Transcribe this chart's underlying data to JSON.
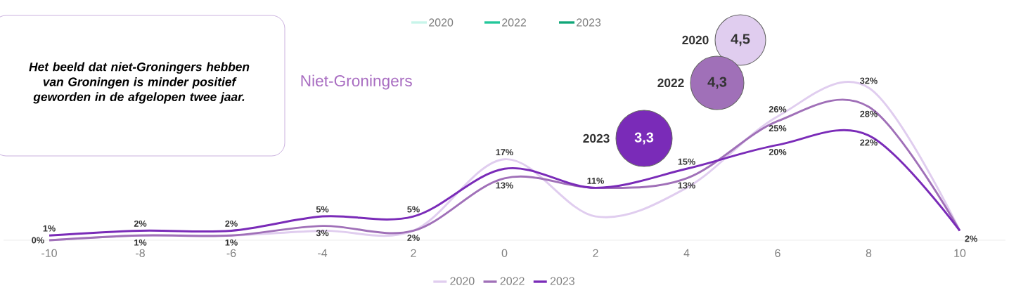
{
  "chart_data": {
    "type": "line",
    "title": "Niet-Groningers",
    "categories": [
      "-10",
      "-8",
      "-6",
      "-4",
      "2",
      "0",
      "2",
      "4",
      "6",
      "8",
      "10"
    ],
    "series": [
      {
        "name": "2020",
        "color": "#e0cdef",
        "values": [
          0,
          1,
          1,
          2,
          2,
          17,
          5,
          11,
          26,
          32,
          2
        ],
        "value_labels": [
          null,
          null,
          null,
          null,
          null,
          "17%",
          null,
          null,
          "26%",
          "32%",
          null
        ]
      },
      {
        "name": "2022",
        "color": "#a070b8",
        "values": [
          0,
          1,
          1,
          3,
          2,
          13,
          11,
          13,
          25,
          28,
          2
        ],
        "value_labels": [
          "0%",
          "1%",
          "1%",
          "3%",
          "2%",
          "13%",
          null,
          "13%",
          "25%",
          "28%",
          null
        ]
      },
      {
        "name": "2023",
        "color": "#7a2bb8",
        "values": [
          1,
          2,
          2,
          5,
          5,
          15,
          11,
          15,
          20,
          22,
          2
        ],
        "value_labels": [
          "1%",
          "2%",
          "2%",
          "5%",
          "5%",
          null,
          "11%",
          "15%",
          "20%",
          "22%",
          "2%"
        ]
      }
    ],
    "legend": "bottom",
    "annotations": [
      "Het beeld dat niet-Groningers hebben van Groningen is minder positief geworden in de afgelopen twee jaar.",
      "2020",
      "2022",
      "2023",
      "2020",
      "4,5",
      "2022",
      "4,3",
      "2023",
      "3,3"
    ]
  }
}
